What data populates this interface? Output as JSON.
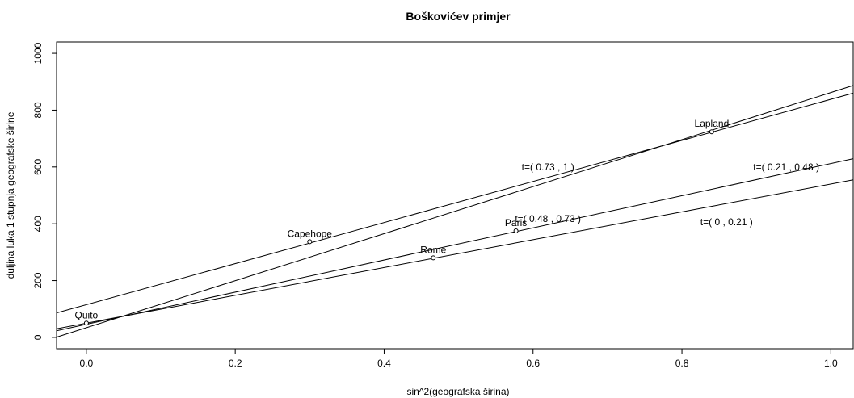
{
  "chart_data": {
    "type": "scatter",
    "title": "Boškovićev primjer",
    "xlabel": "sin^2(geografska širina)",
    "ylabel": "duljina luka 1 stupnja geografske širine",
    "xlim": [
      -0.04,
      1.03
    ],
    "ylim": [
      -40,
      1040
    ],
    "x_ticks": [
      0.0,
      0.2,
      0.4,
      0.6,
      0.8,
      1.0
    ],
    "x_tick_labels": [
      "0.0",
      "0.2",
      "0.4",
      "0.6",
      "0.8",
      "1.0"
    ],
    "y_ticks": [
      0,
      200,
      400,
      600,
      800,
      1000
    ],
    "y_tick_labels": [
      "0",
      "200",
      "400",
      "600",
      "800",
      "1000"
    ],
    "grid": false,
    "points": [
      {
        "label": "Quito",
        "x": 0.0,
        "y": 50
      },
      {
        "label": "Capehope",
        "x": 0.3,
        "y": 337
      },
      {
        "label": "Rome",
        "x": 0.466,
        "y": 280
      },
      {
        "label": "Paris",
        "x": 0.577,
        "y": 375
      },
      {
        "label": "Lapland",
        "x": 0.84,
        "y": 724
      }
    ],
    "lines": [
      {
        "intercept": 115,
        "slope": 723
      },
      {
        "intercept": 34,
        "slope": 828
      },
      {
        "intercept": 46,
        "slope": 566
      },
      {
        "intercept": 50,
        "slope": 490
      }
    ],
    "annotations": [
      {
        "text": "t=( 0.73 , 1 )",
        "x": 0.62,
        "y": 600
      },
      {
        "text": "t=( 0.21 , 0.48 )",
        "x": 0.94,
        "y": 600
      },
      {
        "text": "t=( 0.48 , 0.73 )",
        "x": 0.62,
        "y": 418
      },
      {
        "text": "t=( 0 , 0.21 )",
        "x": 0.86,
        "y": 406
      }
    ]
  }
}
